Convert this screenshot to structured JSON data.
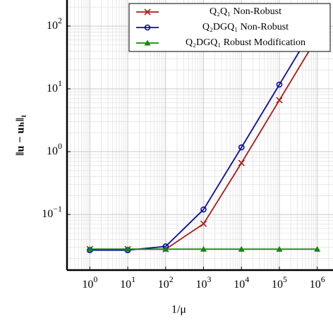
{
  "chart_data": {
    "type": "line",
    "xlabel": "1/μ",
    "ylabel": "‖u − uₕ‖₁",
    "x": [
      1,
      10,
      100,
      1000,
      10000,
      100000,
      1000000
    ],
    "series": [
      {
        "name": "Q₂Q₁ Non-Robust",
        "color": "#b01818",
        "marker": "x",
        "values": [
          0.028,
          0.028,
          0.028,
          0.071,
          0.66,
          6.6,
          66
        ]
      },
      {
        "name": "Q₂DGQ₁ Non-Robust",
        "color": "#0a0aa8",
        "marker": "o",
        "values": [
          0.027,
          0.027,
          0.031,
          0.12,
          1.17,
          11.7,
          117
        ]
      },
      {
        "name": "Q₂DGQ₁ Robust Modification",
        "color": "#0c8a0c",
        "marker": "^",
        "values": [
          0.028,
          0.028,
          0.028,
          0.028,
          0.028,
          0.028,
          0.028
        ]
      }
    ],
    "xscale": "log",
    "yscale": "log",
    "xlim": [
      0.25,
      2600000
    ],
    "ylim": [
      0.013,
      260
    ],
    "xticks": [
      {
        "value": 1,
        "label": "10^0"
      },
      {
        "value": 10,
        "label": "10^1"
      },
      {
        "value": 100,
        "label": "10^2"
      },
      {
        "value": 1000,
        "label": "10^3"
      },
      {
        "value": 10000,
        "label": "10^4"
      },
      {
        "value": 100000,
        "label": "10^5"
      },
      {
        "value": 1000000,
        "label": "10^6"
      }
    ],
    "yticks": [
      {
        "value": 0.1,
        "label": "10^−1"
      },
      {
        "value": 1,
        "label": "10^0"
      },
      {
        "value": 10,
        "label": "10^1"
      },
      {
        "value": 100,
        "label": "10^2"
      }
    ],
    "grid": true,
    "minor_grid": true,
    "legend": "upper right"
  }
}
